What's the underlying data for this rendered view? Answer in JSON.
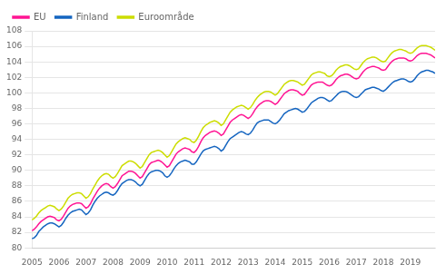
{
  "chart_data": {
    "type": "line",
    "legend": "upper left",
    "grid": "y",
    "xlim": [
      2005,
      2019.916667
    ],
    "xticks": [
      2005,
      2006,
      2007,
      2008,
      2009,
      2010,
      2011,
      2012,
      2013,
      2014,
      2015,
      2016,
      2017,
      2018,
      2019
    ],
    "ylim": [
      80,
      108
    ],
    "yticks": [
      80,
      82,
      84,
      86,
      88,
      90,
      92,
      94,
      96,
      98,
      100,
      102,
      104,
      106,
      108
    ],
    "x": [
      2005,
      2005.083333,
      2005.166667,
      2005.25,
      2005.333333,
      2005.416667,
      2005.5,
      2005.583333,
      2005.666667,
      2005.75,
      2005.833333,
      2005.916667,
      2006,
      2006.083333,
      2006.166667,
      2006.25,
      2006.333333,
      2006.416667,
      2006.5,
      2006.583333,
      2006.666667,
      2006.75,
      2006.833333,
      2006.916667,
      2007,
      2007.083333,
      2007.166667,
      2007.25,
      2007.333333,
      2007.416667,
      2007.5,
      2007.583333,
      2007.666667,
      2007.75,
      2007.833333,
      2007.916667,
      2008,
      2008.083333,
      2008.166667,
      2008.25,
      2008.333333,
      2008.416667,
      2008.5,
      2008.583333,
      2008.666667,
      2008.75,
      2008.833333,
      2008.916667,
      2009,
      2009.083333,
      2009.166667,
      2009.25,
      2009.333333,
      2009.416667,
      2009.5,
      2009.583333,
      2009.666667,
      2009.75,
      2009.833333,
      2009.916667,
      2010,
      2010.083333,
      2010.166667,
      2010.25,
      2010.333333,
      2010.416667,
      2010.5,
      2010.583333,
      2010.666667,
      2010.75,
      2010.833333,
      2010.916667,
      2011,
      2011.083333,
      2011.166667,
      2011.25,
      2011.333333,
      2011.416667,
      2011.5,
      2011.583333,
      2011.666667,
      2011.75,
      2011.833333,
      2011.916667,
      2012,
      2012.083333,
      2012.166667,
      2012.25,
      2012.333333,
      2012.416667,
      2012.5,
      2012.583333,
      2012.666667,
      2012.75,
      2012.833333,
      2012.916667,
      2013,
      2013.083333,
      2013.166667,
      2013.25,
      2013.333333,
      2013.416667,
      2013.5,
      2013.583333,
      2013.666667,
      2013.75,
      2013.833333,
      2013.916667,
      2014,
      2014.083333,
      2014.166667,
      2014.25,
      2014.333333,
      2014.416667,
      2014.5,
      2014.583333,
      2014.666667,
      2014.75,
      2014.833333,
      2014.916667,
      2015,
      2015.083333,
      2015.166667,
      2015.25,
      2015.333333,
      2015.416667,
      2015.5,
      2015.583333,
      2015.666667,
      2015.75,
      2015.833333,
      2015.916667,
      2016,
      2016.083333,
      2016.166667,
      2016.25,
      2016.333333,
      2016.416667,
      2016.5,
      2016.583333,
      2016.666667,
      2016.75,
      2016.833333,
      2016.916667,
      2017,
      2017.083333,
      2017.166667,
      2017.25,
      2017.333333,
      2017.416667,
      2017.5,
      2017.583333,
      2017.666667,
      2017.75,
      2017.833333,
      2017.916667,
      2018,
      2018.083333,
      2018.166667,
      2018.25,
      2018.333333,
      2018.416667,
      2018.5,
      2018.583333,
      2018.666667,
      2018.75,
      2018.833333,
      2018.916667,
      2019,
      2019.083333,
      2019.166667,
      2019.25,
      2019.333333,
      2019.416667,
      2019.5,
      2019.583333,
      2019.666667,
      2019.75,
      2019.833333,
      2019.916667
    ],
    "series": [
      {
        "name": "EU",
        "color": "#FF1493",
        "values": [
          82.2,
          82.4,
          82.7,
          83.1,
          83.4,
          83.6,
          83.8,
          84.0,
          84.1,
          84.0,
          83.9,
          83.6,
          83.5,
          83.7,
          84.1,
          84.6,
          85.1,
          85.4,
          85.6,
          85.7,
          85.8,
          85.8,
          85.7,
          85.4,
          85.1,
          85.3,
          85.7,
          86.3,
          86.8,
          87.3,
          87.7,
          88.0,
          88.2,
          88.3,
          88.2,
          87.9,
          87.7,
          87.9,
          88.3,
          88.8,
          89.3,
          89.5,
          89.7,
          89.9,
          89.9,
          89.8,
          89.6,
          89.3,
          89.0,
          89.2,
          89.7,
          90.2,
          90.7,
          91.0,
          91.1,
          91.2,
          91.3,
          91.2,
          91.0,
          90.7,
          90.4,
          90.6,
          91.1,
          91.6,
          92.1,
          92.4,
          92.6,
          92.8,
          92.9,
          92.8,
          92.7,
          92.4,
          92.3,
          92.6,
          93.1,
          93.7,
          94.2,
          94.5,
          94.7,
          94.9,
          95.0,
          95.1,
          95.0,
          94.8,
          94.5,
          94.7,
          95.2,
          95.7,
          96.2,
          96.5,
          96.7,
          96.9,
          97.1,
          97.2,
          97.1,
          96.9,
          96.7,
          96.9,
          97.3,
          97.8,
          98.2,
          98.5,
          98.7,
          98.9,
          99.0,
          99.0,
          98.9,
          98.7,
          98.5,
          98.7,
          99.1,
          99.5,
          99.9,
          100.1,
          100.3,
          100.4,
          100.4,
          100.3,
          100.2,
          99.9,
          99.7,
          99.8,
          100.2,
          100.6,
          101.0,
          101.2,
          101.3,
          101.4,
          101.4,
          101.4,
          101.2,
          101.0,
          100.9,
          101.0,
          101.3,
          101.7,
          102.0,
          102.2,
          102.3,
          102.4,
          102.4,
          102.3,
          102.1,
          101.9,
          101.8,
          101.9,
          102.3,
          102.7,
          103.0,
          103.2,
          103.3,
          103.4,
          103.4,
          103.3,
          103.2,
          103.0,
          102.9,
          103.0,
          103.4,
          103.8,
          104.1,
          104.3,
          104.4,
          104.5,
          104.5,
          104.5,
          104.4,
          104.2,
          104.1,
          104.2,
          104.5,
          104.8,
          105.0,
          105.1,
          105.1,
          105.1,
          105.0,
          104.9,
          104.7,
          104.5
        ]
      },
      {
        "name": "Finland",
        "color": "#1565C0",
        "values": [
          81.2,
          81.3,
          81.6,
          82.1,
          82.4,
          82.7,
          82.9,
          83.1,
          83.2,
          83.2,
          83.1,
          82.9,
          82.7,
          82.9,
          83.3,
          83.8,
          84.2,
          84.5,
          84.7,
          84.8,
          84.9,
          85.0,
          84.9,
          84.6,
          84.3,
          84.5,
          84.9,
          85.5,
          86.0,
          86.4,
          86.7,
          86.9,
          87.1,
          87.2,
          87.1,
          86.9,
          86.8,
          87.0,
          87.4,
          87.9,
          88.3,
          88.5,
          88.7,
          88.8,
          88.8,
          88.7,
          88.5,
          88.2,
          88.0,
          88.2,
          88.7,
          89.2,
          89.6,
          89.8,
          89.9,
          90.0,
          90.0,
          89.9,
          89.7,
          89.3,
          89.1,
          89.3,
          89.7,
          90.2,
          90.6,
          90.9,
          91.1,
          91.2,
          91.3,
          91.2,
          91.1,
          90.8,
          90.8,
          91.1,
          91.6,
          92.1,
          92.5,
          92.7,
          92.8,
          92.9,
          93.0,
          93.1,
          93.0,
          92.8,
          92.5,
          92.7,
          93.2,
          93.7,
          94.1,
          94.3,
          94.5,
          94.7,
          94.9,
          95.0,
          94.9,
          94.7,
          94.6,
          94.8,
          95.2,
          95.7,
          96.1,
          96.3,
          96.4,
          96.5,
          96.5,
          96.5,
          96.3,
          96.1,
          96.0,
          96.2,
          96.5,
          96.9,
          97.3,
          97.5,
          97.7,
          97.8,
          97.9,
          98.0,
          97.9,
          97.7,
          97.5,
          97.6,
          97.9,
          98.3,
          98.7,
          98.9,
          99.1,
          99.3,
          99.4,
          99.4,
          99.3,
          99.1,
          98.9,
          99.0,
          99.3,
          99.6,
          99.9,
          100.1,
          100.2,
          100.2,
          100.1,
          99.9,
          99.7,
          99.5,
          99.4,
          99.5,
          99.8,
          100.1,
          100.4,
          100.5,
          100.6,
          100.7,
          100.7,
          100.6,
          100.5,
          100.3,
          100.2,
          100.4,
          100.7,
          101.0,
          101.3,
          101.5,
          101.6,
          101.7,
          101.8,
          101.8,
          101.7,
          101.5,
          101.4,
          101.5,
          101.8,
          102.2,
          102.5,
          102.7,
          102.8,
          102.9,
          102.9,
          102.8,
          102.7,
          102.5
        ]
      },
      {
        "name": "Euroområde",
        "color": "#CCDD00",
        "values": [
          83.6,
          83.8,
          84.1,
          84.5,
          84.8,
          85.0,
          85.2,
          85.4,
          85.5,
          85.4,
          85.3,
          85.0,
          84.8,
          85.0,
          85.4,
          85.9,
          86.4,
          86.7,
          86.9,
          87.0,
          87.1,
          87.1,
          87.0,
          86.7,
          86.4,
          86.6,
          87.0,
          87.6,
          88.1,
          88.6,
          89.0,
          89.3,
          89.5,
          89.6,
          89.5,
          89.2,
          89.0,
          89.2,
          89.6,
          90.1,
          90.6,
          90.8,
          91.0,
          91.2,
          91.2,
          91.1,
          90.9,
          90.6,
          90.3,
          90.5,
          91.0,
          91.5,
          92.0,
          92.3,
          92.4,
          92.5,
          92.6,
          92.5,
          92.3,
          92.0,
          91.7,
          91.9,
          92.4,
          92.9,
          93.4,
          93.7,
          93.9,
          94.1,
          94.2,
          94.1,
          94.0,
          93.7,
          93.6,
          93.9,
          94.4,
          95.0,
          95.5,
          95.8,
          96.0,
          96.2,
          96.3,
          96.4,
          96.3,
          96.1,
          95.8,
          96.0,
          96.5,
          97.0,
          97.5,
          97.8,
          98.0,
          98.2,
          98.3,
          98.4,
          98.3,
          98.1,
          97.9,
          98.1,
          98.5,
          99.0,
          99.4,
          99.7,
          99.9,
          100.1,
          100.2,
          100.2,
          100.1,
          99.9,
          99.7,
          99.9,
          100.3,
          100.7,
          101.1,
          101.3,
          101.5,
          101.6,
          101.6,
          101.5,
          101.4,
          101.2,
          101.0,
          101.1,
          101.5,
          101.9,
          102.3,
          102.5,
          102.6,
          102.7,
          102.7,
          102.6,
          102.5,
          102.2,
          102.1,
          102.2,
          102.5,
          102.9,
          103.2,
          103.4,
          103.5,
          103.6,
          103.6,
          103.5,
          103.3,
          103.1,
          103.0,
          103.1,
          103.5,
          103.9,
          104.2,
          104.4,
          104.5,
          104.6,
          104.6,
          104.5,
          104.3,
          104.1,
          104.0,
          104.1,
          104.5,
          104.9,
          105.2,
          105.4,
          105.5,
          105.6,
          105.6,
          105.5,
          105.4,
          105.2,
          105.1,
          105.2,
          105.5,
          105.8,
          106.0,
          106.1,
          106.1,
          106.1,
          106.0,
          105.9,
          105.7,
          105.5
        ]
      }
    ]
  }
}
